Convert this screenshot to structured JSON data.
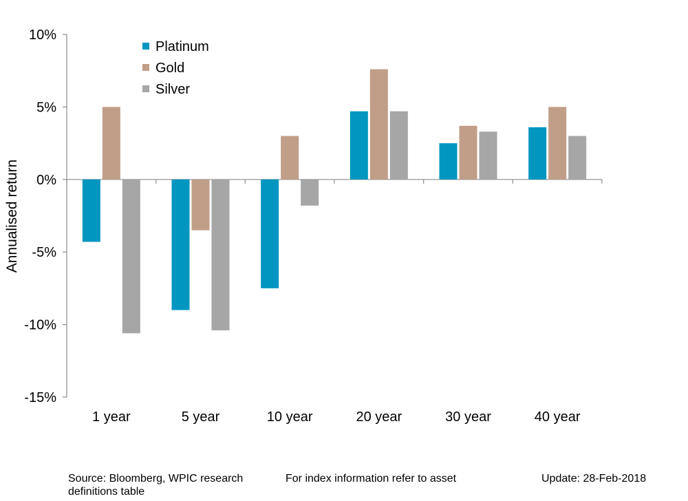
{
  "chart_data": {
    "type": "bar",
    "categories": [
      "1 year",
      "5 year",
      "10 year",
      "20 year",
      "30 year",
      "40 year"
    ],
    "series": [
      {
        "name": "Platinum",
        "color": "#0096c0",
        "values": [
          -4.3,
          -9.0,
          -7.5,
          4.7,
          2.5,
          3.6
        ]
      },
      {
        "name": "Gold",
        "color": "#c09e88",
        "values": [
          5.0,
          -3.5,
          3.0,
          7.6,
          3.7,
          5.0
        ]
      },
      {
        "name": "Silver",
        "color": "#a6a6a6",
        "values": [
          -10.6,
          -10.4,
          -1.8,
          4.7,
          3.3,
          3.0
        ]
      }
    ],
    "ylabel": "Annualised return",
    "ylim": [
      -15,
      10
    ],
    "yticks": [
      10,
      5,
      0,
      -5,
      -10,
      -15
    ],
    "ytick_labels": [
      "10%",
      "5%",
      "0%",
      "-5%",
      "-10%",
      "-15%"
    ],
    "grid": false,
    "legend_position": "top-left"
  },
  "footer": {
    "source": "Source: Bloomberg, WPIC research",
    "index_info": "For index information refer to asset",
    "definitions": "definitions table",
    "update": "Update: 28-Feb-2018"
  }
}
